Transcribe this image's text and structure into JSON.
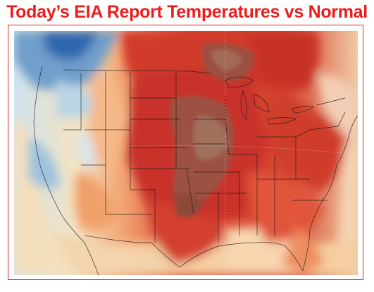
{
  "title": "Today’s EIA Report Temperatures vs Normal",
  "colors": {
    "title": "#ee1c1c",
    "frame": "#e02424",
    "anomaly_scale": [
      "#1f5aa8",
      "#5d95c7",
      "#a7cbe3",
      "#dde9ef",
      "#f6e7c8",
      "#f8c990",
      "#f39462",
      "#e65a3e",
      "#cf3626",
      "#b5301f",
      "#9c4a3c",
      "#9e6a5a"
    ]
  }
}
